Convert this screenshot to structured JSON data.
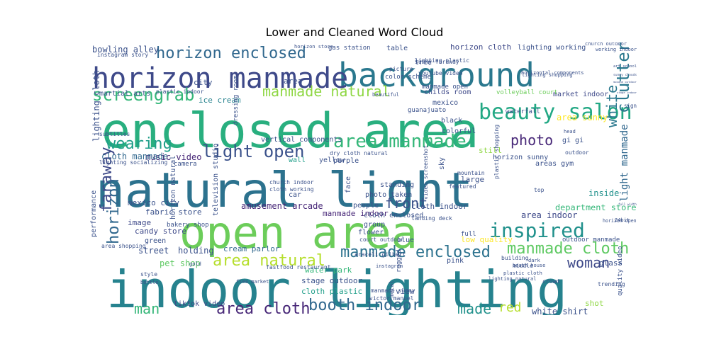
{
  "chart_data": {
    "type": "wordcloud",
    "title": "Lower and Cleaned Word Cloud",
    "background": "#ffffff",
    "colormap": "viridis",
    "words": [
      {
        "text": "natural light",
        "weight": 1.0,
        "color": "#2c728e"
      },
      {
        "text": "indoor lighting",
        "weight": 0.97,
        "color": "#26828e"
      },
      {
        "text": "enclosed area",
        "weight": 0.95,
        "color": "#29af7f"
      },
      {
        "text": "open area",
        "weight": 0.8,
        "color": "#6ccd5a"
      },
      {
        "text": "background",
        "weight": 0.62,
        "color": "#2a788e"
      },
      {
        "text": "horizon manmade",
        "weight": 0.5,
        "color": "#3e4989"
      },
      {
        "text": "beauty salon",
        "weight": 0.42,
        "color": "#22a884"
      },
      {
        "text": "horizon enclosed",
        "weight": 0.3,
        "color": "#31688e"
      },
      {
        "text": "inspired",
        "weight": 0.34,
        "color": "#21918c"
      },
      {
        "text": "manmade enclosed",
        "weight": 0.28,
        "color": "#2c728e"
      },
      {
        "text": "area manmade",
        "weight": 0.3,
        "color": "#35b779"
      },
      {
        "text": "light open",
        "weight": 0.3,
        "color": "#3b528b"
      },
      {
        "text": "manmade cloth",
        "weight": 0.27,
        "color": "#5ec962"
      },
      {
        "text": "screengrab",
        "weight": 0.26,
        "color": "#35b779"
      },
      {
        "text": "manmade natural",
        "weight": 0.25,
        "color": "#8fd744"
      },
      {
        "text": "area natural",
        "weight": 0.25,
        "color": "#b5de2b"
      },
      {
        "text": "booth indoor",
        "weight": 0.24,
        "color": "#31688e"
      },
      {
        "text": "area cloth",
        "weight": 0.24,
        "color": "#482878"
      },
      {
        "text": "cluttered space",
        "weight": 0.25,
        "color": "#2a788e"
      },
      {
        "text": "wearing",
        "weight": 0.23,
        "color": "#1f9e89"
      },
      {
        "text": "faraway",
        "weight": 0.22,
        "color": "#3e4989"
      },
      {
        "text": "horizon",
        "weight": 0.21,
        "color": "#31688e"
      },
      {
        "text": "white",
        "weight": 0.21,
        "color": "#2a788e"
      },
      {
        "text": "photo",
        "weight": 0.2,
        "color": "#482878"
      },
      {
        "text": "woman",
        "weight": 0.2,
        "color": "#3e4989"
      },
      {
        "text": "front",
        "weight": 0.2,
        "color": "#3b528b"
      },
      {
        "text": "man",
        "weight": 0.2,
        "color": "#35b779"
      },
      {
        "text": "made",
        "weight": 0.19,
        "color": "#21918c"
      },
      {
        "text": "red",
        "weight": 0.18,
        "color": "#b5de2b"
      },
      {
        "text": "light manmade",
        "weight": 0.16,
        "color": "#31688e"
      },
      {
        "text": "department store",
        "weight": 0.15,
        "color": "#35b779"
      },
      {
        "text": "white shirt",
        "weight": 0.14,
        "color": "#3b528b"
      },
      {
        "text": "bowling alley",
        "weight": 0.14,
        "color": "#3b528b"
      },
      {
        "text": "area indoor",
        "weight": 0.13,
        "color": "#3e4989"
      },
      {
        "text": "inside",
        "weight": 0.13,
        "color": "#21918c"
      },
      {
        "text": "music video",
        "weight": 0.13,
        "color": "#482878"
      },
      {
        "text": "street",
        "weight": 0.13,
        "color": "#3b528b"
      },
      {
        "text": "holding",
        "weight": 0.13,
        "color": "#3b528b"
      },
      {
        "text": "pet shop",
        "weight": 0.13,
        "color": "#5ec962"
      },
      {
        "text": "cloth manmade",
        "weight": 0.13,
        "color": "#31688e"
      },
      {
        "text": "area sunny",
        "weight": 0.12,
        "color": "#fde725"
      },
      {
        "text": "lighting cloth",
        "weight": 0.12,
        "color": "#3b528b"
      },
      {
        "text": "amusement arcade",
        "weight": 0.12,
        "color": "#482878"
      },
      {
        "text": "stage outdoor",
        "weight": 0.12,
        "color": "#3b528b"
      },
      {
        "text": "cream parlor",
        "weight": 0.12,
        "color": "#31688e"
      },
      {
        "text": "water park",
        "weight": 0.12,
        "color": "#35b779"
      },
      {
        "text": "cloth plastic",
        "weight": 0.12,
        "color": "#1f9e89"
      },
      {
        "text": "cloth indoor",
        "weight": 0.12,
        "color": "#3b528b"
      },
      {
        "text": "manmade indoor",
        "weight": 0.12,
        "color": "#482878"
      },
      {
        "text": "candy store",
        "weight": 0.12,
        "color": "#3e4989"
      },
      {
        "text": "fabric store",
        "weight": 0.12,
        "color": "#3b528b"
      },
      {
        "text": "mexico city",
        "weight": 0.12,
        "color": "#3b528b"
      },
      {
        "text": "image",
        "weight": 0.12,
        "color": "#3e4989"
      },
      {
        "text": "tiktok video",
        "weight": 0.11,
        "color": "#3e4989"
      },
      {
        "text": "glass",
        "weight": 0.11,
        "color": "#3b528b"
      },
      {
        "text": "low quality",
        "weight": 0.11,
        "color": "#fde725"
      },
      {
        "text": "shot",
        "weight": 0.11,
        "color": "#8fd744"
      },
      {
        "text": "view",
        "weight": 0.11,
        "color": "#3b528b"
      },
      {
        "text": "large",
        "weight": 0.11,
        "color": "#3b528b"
      },
      {
        "text": "horizon cloth",
        "weight": 0.11,
        "color": "#3e4989"
      },
      {
        "text": "lighting working",
        "weight": 0.1,
        "color": "#3b528b"
      },
      {
        "text": "ice cream",
        "weight": 0.11,
        "color": "#26828e"
      },
      {
        "text": "city",
        "weight": 0.11,
        "color": "#3b528b"
      },
      {
        "text": "area",
        "weight": 0.11,
        "color": "#3b528b"
      },
      {
        "text": "martial arts",
        "weight": 0.1,
        "color": "#3b528b"
      },
      {
        "text": "childs room",
        "weight": 0.1,
        "color": "#3e4989"
      },
      {
        "text": "mexico",
        "weight": 0.1,
        "color": "#3b528b"
      },
      {
        "text": "black",
        "weight": 0.1,
        "color": "#3b528b"
      },
      {
        "text": "colorful",
        "weight": 0.1,
        "color": "#3b528b"
      },
      {
        "text": "gi gi",
        "weight": 0.1,
        "color": "#3b528b"
      },
      {
        "text": "market indoor",
        "weight": 0.1,
        "color": "#3e4989"
      },
      {
        "text": "volleyball court",
        "weight": 0.1,
        "color": "#6ccd5a"
      },
      {
        "text": "standing",
        "weight": 0.1,
        "color": "#3b528b"
      },
      {
        "text": "photo taken",
        "weight": 0.1,
        "color": "#3b528b"
      },
      {
        "text": "cloth enclosed",
        "weight": 0.1,
        "color": "#3b528b"
      },
      {
        "text": "vertical components",
        "weight": 0.1,
        "color": "#3b528b"
      },
      {
        "text": "purple",
        "weight": 0.1,
        "color": "#3b528b"
      },
      {
        "text": "yellow",
        "weight": 0.1,
        "color": "#3b528b"
      },
      {
        "text": "wall",
        "weight": 0.1,
        "color": "#1f9e89"
      },
      {
        "text": "flower",
        "weight": 0.1,
        "color": "#3b528b"
      },
      {
        "text": "group",
        "weight": 0.1,
        "color": "#3b528b"
      },
      {
        "text": "car",
        "weight": 0.1,
        "color": "#3b528b"
      },
      {
        "text": "people",
        "weight": 0.1,
        "color": "#3b528b"
      },
      {
        "text": "blue",
        "weight": 0.1,
        "color": "#3b528b"
      },
      {
        "text": "green",
        "weight": 0.1,
        "color": "#3b528b"
      },
      {
        "text": "pink",
        "weight": 0.1,
        "color": "#3b528b"
      },
      {
        "text": "table",
        "weight": 0.1,
        "color": "#3b528b"
      },
      {
        "text": "tree",
        "weight": 0.1,
        "color": "#3b528b"
      },
      {
        "text": "art school",
        "weight": 0.09,
        "color": "#3b528b"
      },
      {
        "text": "television studio",
        "weight": 0.09,
        "color": "#3b528b"
      },
      {
        "text": "horizon sunny",
        "weight": 0.09,
        "color": "#3b528b"
      },
      {
        "text": "still",
        "weight": 0.09,
        "color": "#8fd744"
      },
      {
        "text": "dressing room",
        "weight": 0.09,
        "color": "#3b528b"
      },
      {
        "text": "guanajuato",
        "weight": 0.09,
        "color": "#3b528b"
      },
      {
        "text": "waterfall",
        "weight": 0.09,
        "color": "#3b528b"
      },
      {
        "text": "bakery shop",
        "weight": 0.09,
        "color": "#3b528b"
      },
      {
        "text": "face",
        "weight": 0.09,
        "color": "#3b528b"
      },
      {
        "text": "horizon open",
        "weight": 0.09,
        "color": "#3b528b"
      },
      {
        "text": "outdoor manmade",
        "weight": 0.09,
        "color": "#3b528b"
      },
      {
        "text": "performance",
        "weight": 0.09,
        "color": "#3b528b"
      },
      {
        "text": "areas gym",
        "weight": 0.09,
        "color": "#3b528b"
      },
      {
        "text": "horizon natural",
        "weight": 0.09,
        "color": "#3b528b"
      },
      {
        "text": "sky",
        "weight": 0.09,
        "color": "#3b528b"
      },
      {
        "text": "instagram story",
        "weight": 0.08,
        "color": "#3b528b"
      },
      {
        "text": "color scheme",
        "weight": 0.08,
        "color": "#3b528b"
      },
      {
        "text": "manmade open",
        "weight": 0.08,
        "color": "#3b528b"
      },
      {
        "text": "plastic indoor",
        "weight": 0.08,
        "color": "#3b528b"
      },
      {
        "text": "subtitles",
        "weight": 0.08,
        "color": "#3b528b"
      },
      {
        "text": "quality video",
        "weight": 0.08,
        "color": "#3b528b"
      },
      {
        "text": "working indoor",
        "weight": 0.08,
        "color": "#3b528b"
      },
      {
        "text": "sunny clouds",
        "weight": 0.08,
        "color": "#3b528b"
      },
      {
        "text": "gas station",
        "weight": 0.08,
        "color": "#3b528b"
      },
      {
        "text": "sign",
        "weight": 0.08,
        "color": "#3b528b"
      },
      {
        "text": "dry cloth natural",
        "weight": 0.08,
        "color": "#3b528b"
      },
      {
        "text": "lighting socializing",
        "weight": 0.08,
        "color": "#3b528b"
      },
      {
        "text": "mosque outdoor",
        "weight": 0.08,
        "color": "#3b528b"
      },
      {
        "text": "plastic shopping",
        "weight": 0.08,
        "color": "#3b528b"
      },
      {
        "text": "cloth working",
        "weight": 0.08,
        "color": "#3b528b"
      },
      {
        "text": "church indoor",
        "weight": 0.08,
        "color": "#3b528b"
      },
      {
        "text": "middle",
        "weight": 0.08,
        "color": "#3b528b"
      },
      {
        "text": "youtube video",
        "weight": 0.08,
        "color": "#3b528b"
      },
      {
        "text": "camera",
        "weight": 0.08,
        "color": "#3b528b"
      },
      {
        "text": "area shopping",
        "weight": 0.08,
        "color": "#3b528b"
      },
      {
        "text": "sunny faraway",
        "weight": 0.08,
        "color": "#3b528b"
      },
      {
        "text": "lighting plastic",
        "weight": 0.08,
        "color": "#3b528b"
      },
      {
        "text": "full",
        "weight": 0.08,
        "color": "#3b528b"
      },
      {
        "text": "landing deck",
        "weight": 0.08,
        "color": "#3b528b"
      },
      {
        "text": "court outdoor",
        "weight": 0.08,
        "color": "#3b528b"
      },
      {
        "text": "manmade sunny",
        "weight": 0.08,
        "color": "#3b528b"
      },
      {
        "text": "victor manuel",
        "weight": 0.08,
        "color": "#3b528b"
      },
      {
        "text": "araceli gilbert",
        "weight": 0.08,
        "color": "#3b528b"
      },
      {
        "text": "fastfood restaurant",
        "weight": 0.08,
        "color": "#3b528b"
      },
      {
        "text": "outdoor",
        "weight": 0.08,
        "color": "#3b528b"
      },
      {
        "text": "mountain",
        "weight": 0.08,
        "color": "#3b528b"
      },
      {
        "text": "featured",
        "weight": 0.08,
        "color": "#3b528b"
      },
      {
        "text": "trending",
        "weight": 0.08,
        "color": "#3b528b"
      },
      {
        "text": "crowd",
        "weight": 0.08,
        "color": "#3b528b"
      },
      {
        "text": "metal",
        "weight": 0.08,
        "color": "#3b528b"
      },
      {
        "text": "rugged",
        "weight": 0.08,
        "color": "#3b528b"
      },
      {
        "text": "video screenshot",
        "weight": 0.08,
        "color": "#3b528b"
      },
      {
        "text": "building",
        "weight": 0.08,
        "color": "#3b528b"
      },
      {
        "text": "beach house",
        "weight": 0.08,
        "color": "#3b528b"
      },
      {
        "text": "instagram",
        "weight": 0.08,
        "color": "#3b528b"
      },
      {
        "text": "flea market",
        "weight": 0.08,
        "color": "#3b528b"
      },
      {
        "text": "style",
        "weight": 0.08,
        "color": "#3b528b"
      },
      {
        "text": "bottle",
        "weight": 0.08,
        "color": "#3b528b"
      },
      {
        "text": "gold",
        "weight": 0.08,
        "color": "#3b528b"
      },
      {
        "text": "horizon store",
        "weight": 0.08,
        "color": "#3b528b"
      },
      {
        "text": "church outdoor",
        "weight": 0.08,
        "color": "#3b528b"
      },
      {
        "text": "stage indoor",
        "weight": 0.08,
        "color": "#3b528b"
      },
      {
        "text": "picture",
        "weight": 0.08,
        "color": "#3b528b"
      },
      {
        "text": "beautiful",
        "weight": 0.08,
        "color": "#3b528b"
      },
      {
        "text": "top",
        "weight": 0.08,
        "color": "#3b528b"
      },
      {
        "text": "head",
        "weight": 0.08,
        "color": "#3b528b"
      },
      {
        "text": "full width",
        "weight": 0.08,
        "color": "#3b528b"
      },
      {
        "text": "24bit",
        "weight": 0.08,
        "color": "#3b528b"
      },
      {
        "text": "dark",
        "weight": 0.08,
        "color": "#3b528b"
      },
      {
        "text": "plastic cloth",
        "weight": 0.08,
        "color": "#3b528b"
      },
      {
        "text": "lighting natural",
        "weight": 0.08,
        "color": "#3b528b"
      },
      {
        "text": "lighting shopping",
        "weight": 0.08,
        "color": "#3b528b"
      },
      {
        "text": "horizontal components",
        "weight": 0.08,
        "color": "#3b528b"
      }
    ]
  }
}
